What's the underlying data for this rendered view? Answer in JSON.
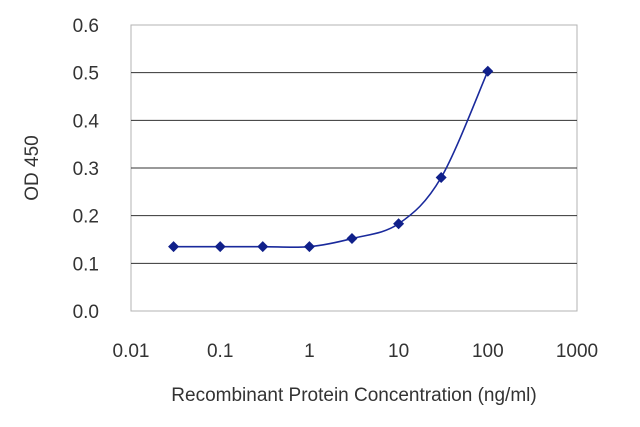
{
  "chart_data": {
    "type": "line",
    "xscale": "log",
    "xlabel": "Recombinant Protein Concentration (ng/ml)",
    "ylabel": "OD 450",
    "xlim": [
      0.01,
      1000
    ],
    "ylim": [
      0,
      0.6
    ],
    "xticks": [
      "0.01",
      "0.1",
      "1",
      "10",
      "100",
      "1000"
    ],
    "yticks": [
      "0.0",
      "0.1",
      "0.2",
      "0.3",
      "0.4",
      "0.5",
      "0.6"
    ],
    "grid": "horizontal",
    "series": [
      {
        "x": [
          0.03,
          0.1,
          0.3,
          1,
          3,
          10,
          30,
          100
        ],
        "y": [
          0.135,
          0.135,
          0.135,
          0.135,
          0.152,
          0.183,
          0.28,
          0.503
        ]
      }
    ],
    "colors": {
      "line": "#1a2a9c",
      "marker": "#10208a",
      "grid": "#333333",
      "plot_border": "#b3b3b3"
    }
  }
}
